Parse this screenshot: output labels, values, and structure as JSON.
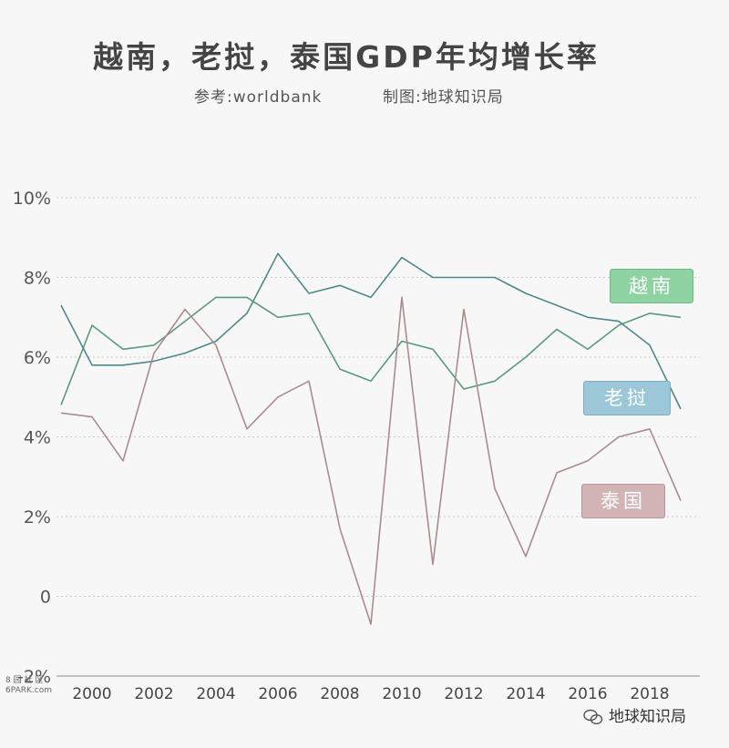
{
  "header": {
    "title": "越南，老挝，泰国GDP年均增长率",
    "source": "参考:worldbank",
    "maker": "制图:地球知识局"
  },
  "watermarks": {
    "left_top": "8 园 社 区",
    "left_bottom": "6PARK.com",
    "right": "地球知识局"
  },
  "chart_data": {
    "type": "line",
    "title": "越南，老挝，泰国GDP年均增长率",
    "xlabel": "",
    "ylabel": "",
    "x": [
      1999,
      2000,
      2001,
      2002,
      2003,
      2004,
      2005,
      2006,
      2007,
      2008,
      2009,
      2010,
      2011,
      2012,
      2013,
      2014,
      2015,
      2016,
      2017,
      2018,
      2019
    ],
    "xticks": [
      2000,
      2002,
      2004,
      2006,
      2008,
      2010,
      2012,
      2014,
      2016,
      2018
    ],
    "xtick_labels": [
      "2000",
      "2002",
      "2004",
      "2006",
      "2008",
      "2010",
      "2012",
      "2014",
      "2016",
      "2018"
    ],
    "yticks": [
      -2,
      0,
      2,
      4,
      6,
      8,
      10
    ],
    "ytick_labels": [
      "-2%",
      "0",
      "2%",
      "4%",
      "6%",
      "8%",
      "10%"
    ],
    "ylim": [
      -2,
      10
    ],
    "grid": true,
    "legend": "right, beside line ends",
    "series": [
      {
        "name": "越南",
        "color": "#5a9a7c",
        "label_color": "#8fd3a3",
        "values": [
          4.8,
          6.8,
          6.2,
          6.3,
          6.9,
          7.5,
          7.5,
          7.0,
          7.1,
          5.7,
          5.4,
          6.4,
          6.2,
          5.2,
          5.4,
          6.0,
          6.7,
          6.2,
          6.8,
          7.1,
          7.0
        ]
      },
      {
        "name": "老挝",
        "color": "#4f8a86",
        "label_color": "#9cc7d9",
        "values": [
          7.3,
          5.8,
          5.8,
          5.9,
          6.1,
          6.4,
          7.1,
          8.6,
          7.6,
          7.8,
          7.5,
          8.5,
          8.0,
          8.0,
          8.0,
          7.6,
          7.3,
          7.0,
          6.9,
          6.3,
          4.7
        ]
      },
      {
        "name": "泰国",
        "color": "#a98c8e",
        "label_color": "#d2b4b6",
        "values": [
          4.6,
          4.5,
          3.4,
          6.1,
          7.2,
          6.3,
          4.2,
          5.0,
          5.4,
          1.7,
          -0.7,
          7.5,
          0.8,
          7.2,
          2.7,
          1.0,
          3.1,
          3.4,
          4.0,
          4.2,
          2.4
        ]
      }
    ]
  }
}
